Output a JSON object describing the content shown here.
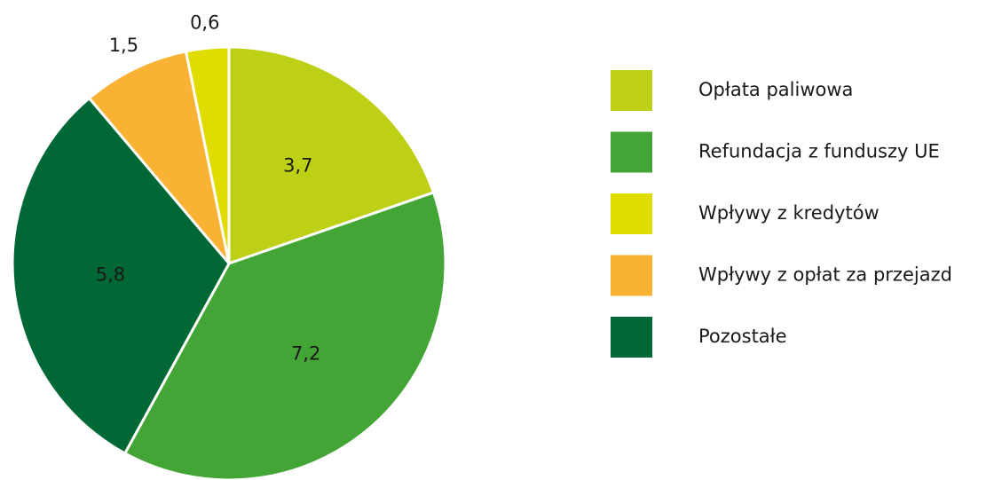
{
  "chart_data": {
    "type": "pie",
    "categories": [
      "Opłata paliwowa",
      "Refundacja z funduszy UE",
      "Wpływy z kredytów",
      "Wpływy z opłat za przejazd",
      "Pozostałe"
    ],
    "values": [
      3.7,
      7.2,
      0.6,
      1.5,
      5.8
    ],
    "value_labels": [
      "3,7",
      "7,2",
      "0,6",
      "1,5",
      "5,8"
    ],
    "colors": [
      "#bdd016",
      "#43a535",
      "#e0dc00",
      "#f9b234",
      "#006835"
    ],
    "legend": "right"
  }
}
